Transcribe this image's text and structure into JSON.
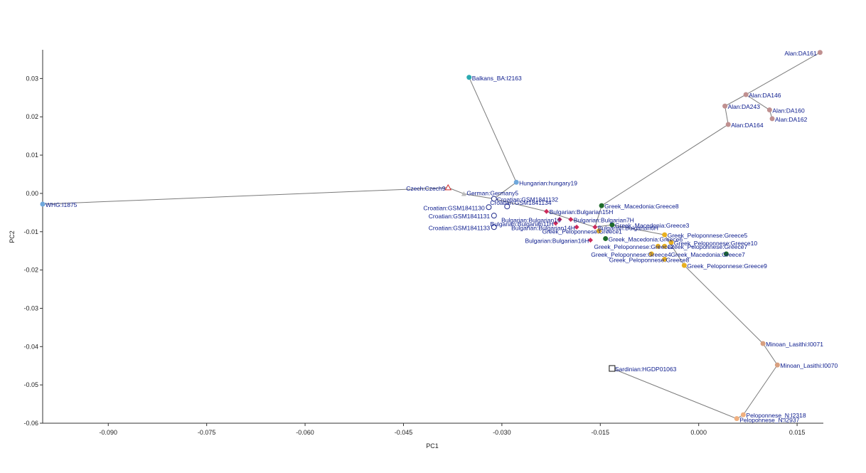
{
  "chart_data": {
    "type": "scatter",
    "title": "",
    "xlabel": "PC1",
    "ylabel": "PC2",
    "xlim": [
      -0.1,
      0.019
    ],
    "ylim": [
      -0.06,
      0.0375
    ],
    "xticks": [
      -0.09,
      -0.075,
      -0.06,
      -0.045,
      -0.03,
      -0.015,
      0.0,
      0.015
    ],
    "yticks": [
      0.03,
      0.02,
      0.01,
      0.0,
      -0.01,
      -0.02,
      -0.03,
      -0.04,
      -0.05,
      -0.06
    ],
    "xtick_labels": [
      "-0.090",
      "-0.075",
      "-0.060",
      "-0.045",
      "-0.030",
      "-0.015",
      "0.000",
      "0.015"
    ],
    "ytick_labels": [
      "0.03",
      "0.02",
      "0.01",
      "0.00",
      "-0.01",
      "-0.02",
      "-0.03",
      "-0.04",
      "-0.05",
      "-0.06"
    ],
    "grid": false,
    "points": [
      {
        "label": "WHG:I1875",
        "x": -0.1,
        "y": -0.0028,
        "marker": "circle",
        "color": "#6fa8dc",
        "dx": 4,
        "dy": 4
      },
      {
        "label": "Czech:Czech9",
        "x": -0.0382,
        "y": 0.0015,
        "marker": "triangle-open",
        "color": "#cc2a2a",
        "dx": -59,
        "dy": 4
      },
      {
        "label": "German:Germany5",
        "x": -0.0358,
        "y": -0.0001,
        "marker": "triangle",
        "color": "#bbbbbb",
        "dx": 4,
        "dy": 2
      },
      {
        "label": "Balkans_BA:I2163",
        "x": -0.035,
        "y": 0.0303,
        "marker": "circle",
        "color": "#2aa9b0",
        "dx": 4,
        "dy": 4
      },
      {
        "label": "Hungarian:hungary19",
        "x": -0.0278,
        "y": 0.0029,
        "marker": "circle",
        "color": "#6fa8dc",
        "dx": 4,
        "dy": 4
      },
      {
        "label": "Croatian:GSM1841132",
        "x": -0.0312,
        "y": -0.0014,
        "marker": "circle-open",
        "color": "#1f2a8a",
        "dx": 4,
        "dy": 4
      },
      {
        "label": "Croatian:GSM1841134",
        "x": -0.0292,
        "y": -0.0034,
        "marker": "circle-open",
        "color": "#1f2a8a",
        "dx": -24,
        "dy": -2
      },
      {
        "label": "Croatian:GSM1841130",
        "x": -0.032,
        "y": -0.0036,
        "marker": "circle-open",
        "color": "#1f2a8a",
        "dx": -92,
        "dy": 4
      },
      {
        "label": "Croatian:GSM1841131",
        "x": -0.0312,
        "y": -0.0058,
        "marker": "circle-open",
        "color": "#1f2a8a",
        "dx": -92,
        "dy": 4
      },
      {
        "label": "Croatian:GSM1841133",
        "x": -0.0312,
        "y": -0.0088,
        "marker": "circle-open",
        "color": "#1f2a8a",
        "dx": -92,
        "dy": 4
      },
      {
        "label": "Bulgarian:Bulgarian15H",
        "x": -0.0232,
        "y": -0.0047,
        "marker": "diamond",
        "color": "#cc2a5a",
        "dx": 4,
        "dy": 4
      },
      {
        "label": "Bulgarian:Bulgarian10",
        "x": -0.0212,
        "y": -0.0068,
        "marker": "diamond",
        "color": "#cc2a5a",
        "dx": -82,
        "dy": 0
      },
      {
        "label": "Bulgarian:Bulgarian7H",
        "x": -0.0195,
        "y": -0.0068,
        "marker": "diamond",
        "color": "#cc2a5a",
        "dx": 4,
        "dy": 0
      },
      {
        "label": "Bulgarian:Bulgarian11H",
        "x": -0.0218,
        "y": -0.0078,
        "marker": "diamond",
        "color": "#cc2a5a",
        "dx": -92,
        "dy": 4
      },
      {
        "label": "Bulgarian:Bulgarian14H",
        "x": -0.0186,
        "y": -0.0088,
        "marker": "diamond",
        "color": "#cc2a5a",
        "dx": -92,
        "dy": 4
      },
      {
        "label": "Bulgarian:Bulgarian16H",
        "x": -0.0165,
        "y": -0.0122,
        "marker": "diamond",
        "color": "#cc2a5a",
        "dx": -92,
        "dy": 4
      },
      {
        "label": "Bulgarian:Bulgarian6H",
        "x": -0.0158,
        "y": -0.0088,
        "marker": "diamond",
        "color": "#cc2a5a",
        "dx": 4,
        "dy": 4
      },
      {
        "label": "Greek_Macedonia:Greece8",
        "x": -0.0148,
        "y": -0.0032,
        "marker": "circle",
        "color": "#1e6b2a",
        "dx": 4,
        "dy": 4
      },
      {
        "label": "Greek_Macedonia:Greece3",
        "x": -0.0132,
        "y": -0.0082,
        "marker": "circle",
        "color": "#1e6b2a",
        "dx": 4,
        "dy": 4
      },
      {
        "label": "Greek_Macedonia:Greece6",
        "x": -0.0142,
        "y": -0.0118,
        "marker": "circle",
        "color": "#1e6b2a",
        "dx": 4,
        "dy": 4
      },
      {
        "label": "Greek_Macedonia:Greece7",
        "x": 0.0042,
        "y": -0.0158,
        "marker": "circle",
        "color": "#1e6b2a",
        "dx": -78,
        "dy": 4
      },
      {
        "label": "Greek_Peloponnese:Greece1",
        "x": -0.0152,
        "y": -0.0098,
        "marker": "circle",
        "color": "#e8b020",
        "dx": -80,
        "dy": 0
      },
      {
        "label": "Greek_Peloponnese:Greece5",
        "x": -0.0052,
        "y": -0.0108,
        "marker": "circle",
        "color": "#e8b020",
        "dx": 4,
        "dy": 0
      },
      {
        "label": "Greek_Peloponnese:Greece10",
        "x": -0.0042,
        "y": -0.0128,
        "marker": "circle",
        "color": "#e8b020",
        "dx": 4,
        "dy": 4
      },
      {
        "label": "Greek_Peloponnese:Greece7",
        "x": -0.0052,
        "y": -0.0138,
        "marker": "circle",
        "color": "#e8b020",
        "dx": 4,
        "dy": 4
      },
      {
        "label": "Greek_Peloponnese:Greece9",
        "x": -0.0022,
        "y": -0.0188,
        "marker": "circle",
        "color": "#e8b020",
        "dx": 4,
        "dy": 4
      },
      {
        "label": "Greek_Peloponnese:Greece2",
        "x": -0.0062,
        "y": -0.0138,
        "marker": "circle",
        "color": "#e8b020",
        "dx": -90,
        "dy": 4
      },
      {
        "label": "Greek_Peloponnese:Greece4",
        "x": -0.0072,
        "y": -0.0158,
        "marker": "circle",
        "color": "#e8b020",
        "dx": -85,
        "dy": 4
      },
      {
        "label": "Greek_Peloponnese:Greece8",
        "x": -0.0052,
        "y": -0.0172,
        "marker": "circle",
        "color": "#e8b020",
        "dx": -78,
        "dy": 0
      },
      {
        "label": "Alan:DA161",
        "x": 0.0185,
        "y": 0.0368,
        "marker": "circle",
        "color": "#c09090",
        "dx": -50,
        "dy": 4
      },
      {
        "label": "Alan:DA146",
        "x": 0.0072,
        "y": 0.0258,
        "marker": "circle",
        "color": "#c09090",
        "dx": 4,
        "dy": 4
      },
      {
        "label": "Alan:DA243",
        "x": 0.004,
        "y": 0.0228,
        "marker": "circle",
        "color": "#c09090",
        "dx": 4,
        "dy": 4
      },
      {
        "label": "Alan:DA160",
        "x": 0.0108,
        "y": 0.0218,
        "marker": "circle",
        "color": "#c09090",
        "dx": 4,
        "dy": 4
      },
      {
        "label": "Alan:DA162",
        "x": 0.0112,
        "y": 0.0195,
        "marker": "circle",
        "color": "#c09090",
        "dx": 4,
        "dy": 4
      },
      {
        "label": "Alan:DA164",
        "x": 0.0045,
        "y": 0.018,
        "marker": "circle",
        "color": "#c09090",
        "dx": 4,
        "dy": 4
      },
      {
        "label": "Minoan_Lasithi:I0071",
        "x": 0.0098,
        "y": -0.0392,
        "marker": "circle",
        "color": "#d8a080",
        "dx": 4,
        "dy": 4
      },
      {
        "label": "Minoan_Lasithi:I0070",
        "x": 0.012,
        "y": -0.0448,
        "marker": "circle",
        "color": "#d8a080",
        "dx": 4,
        "dy": 4
      },
      {
        "label": "Peloponnese_N:I2318",
        "x": 0.0068,
        "y": -0.0578,
        "marker": "circle",
        "color": "#f0b080",
        "dx": 4,
        "dy": 4
      },
      {
        "label": "Peloponnese_N:I2937",
        "x": 0.0058,
        "y": -0.0588,
        "marker": "circle",
        "color": "#f0b080",
        "dx": 4,
        "dy": 5
      },
      {
        "label": "Sardinian:HGDP01063",
        "x": -0.0132,
        "y": -0.0457,
        "marker": "square-open",
        "color": "#111111",
        "dx": 4,
        "dy": 4
      }
    ],
    "edges": [
      [
        "WHG:I1875",
        "Czech:Czech9"
      ],
      [
        "Czech:Czech9",
        "German:Germany5"
      ],
      [
        "German:Germany5",
        "Croatian:GSM1841132"
      ],
      [
        "Croatian:GSM1841132",
        "Hungarian:hungary19"
      ],
      [
        "Hungarian:hungary19",
        "Balkans_BA:I2163"
      ],
      [
        "Croatian:GSM1841132",
        "Bulgarian:Bulgarian15H"
      ],
      [
        "Bulgarian:Bulgarian15H",
        "Bulgarian:Bulgarian6H"
      ],
      [
        "Bulgarian:Bulgarian6H",
        "Greek_Macedonia:Greece8"
      ],
      [
        "Greek_Macedonia:Greece8",
        "Alan:DA164"
      ],
      [
        "Alan:DA164",
        "Alan:DA243"
      ],
      [
        "Alan:DA243",
        "Alan:DA146"
      ],
      [
        "Alan:DA146",
        "Alan:DA161"
      ],
      [
        "Alan:DA146",
        "Alan:DA160"
      ],
      [
        "Alan:DA160",
        "Alan:DA162"
      ],
      [
        "Bulgarian:Bulgarian6H",
        "Greek_Macedonia:Greece3"
      ],
      [
        "Greek_Macedonia:Greece3",
        "Greek_Peloponnese:Greece5"
      ],
      [
        "Greek_Peloponnese:Greece5",
        "Greek_Peloponnese:Greece9"
      ],
      [
        "Greek_Peloponnese:Greece9",
        "Minoan_Lasithi:I0071"
      ],
      [
        "Minoan_Lasithi:I0071",
        "Minoan_Lasithi:I0070"
      ],
      [
        "Minoan_Lasithi:I0070",
        "Peloponnese_N:I2318"
      ],
      [
        "Peloponnese_N:I2318",
        "Peloponnese_N:I2937"
      ],
      [
        "Peloponnese_N:I2937",
        "Sardinian:HGDP01063"
      ]
    ]
  },
  "colors": {
    "axis": "#333333",
    "edge": "#7a7a7a",
    "label": "#0a1a8c"
  }
}
